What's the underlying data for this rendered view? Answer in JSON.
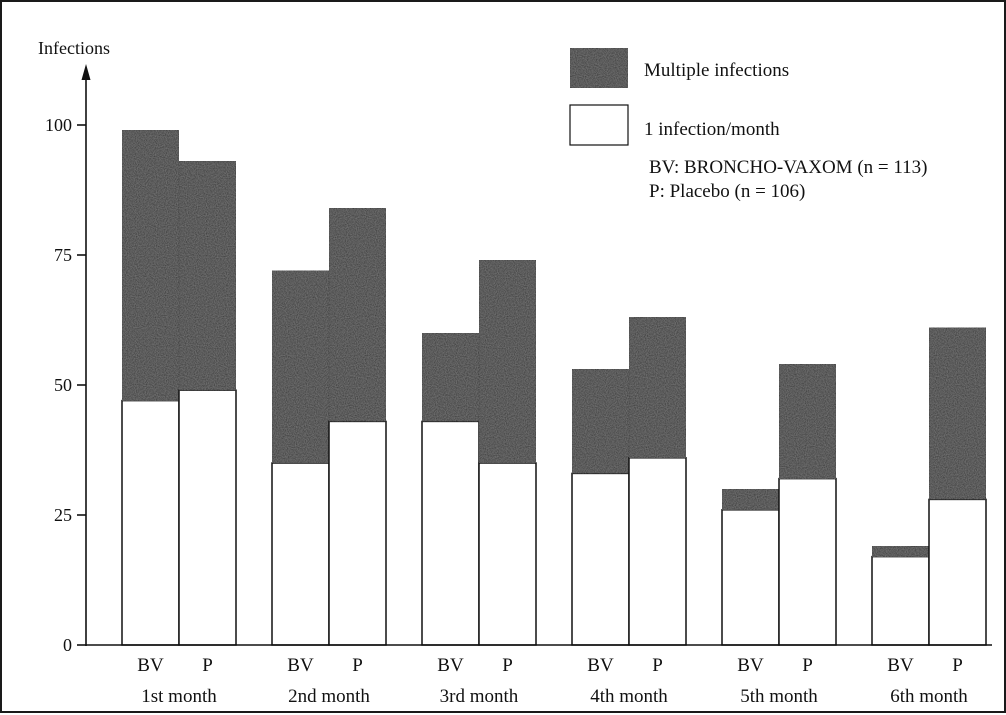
{
  "chart_data": {
    "type": "bar",
    "stacked": true,
    "ylabel": "Infections",
    "xlabel": "",
    "ylim": [
      0,
      100
    ],
    "yticks": [
      0,
      25,
      50,
      75,
      100
    ],
    "groups": [
      "1st month",
      "2nd month",
      "3rd month",
      "4th month",
      "5th month",
      "6th month"
    ],
    "bar_labels": [
      "BV",
      "P"
    ],
    "series": [
      {
        "name": "1 infection/month",
        "color": "#ffffff",
        "values": {
          "BV": [
            47,
            35,
            43,
            33,
            26,
            17
          ],
          "P": [
            49,
            43,
            35,
            36,
            32,
            28
          ]
        }
      },
      {
        "name": "Multiple infections",
        "color": "#262626",
        "values": {
          "BV": [
            52,
            37,
            17,
            20,
            4,
            2
          ],
          "P": [
            44,
            41,
            39,
            27,
            22,
            33
          ]
        }
      }
    ],
    "legend": {
      "position": "top-right",
      "notes": [
        "BV: BRONCHO-VAXOM (n = 113)",
        "P: Placebo (n = 106)"
      ]
    },
    "grid": false
  }
}
